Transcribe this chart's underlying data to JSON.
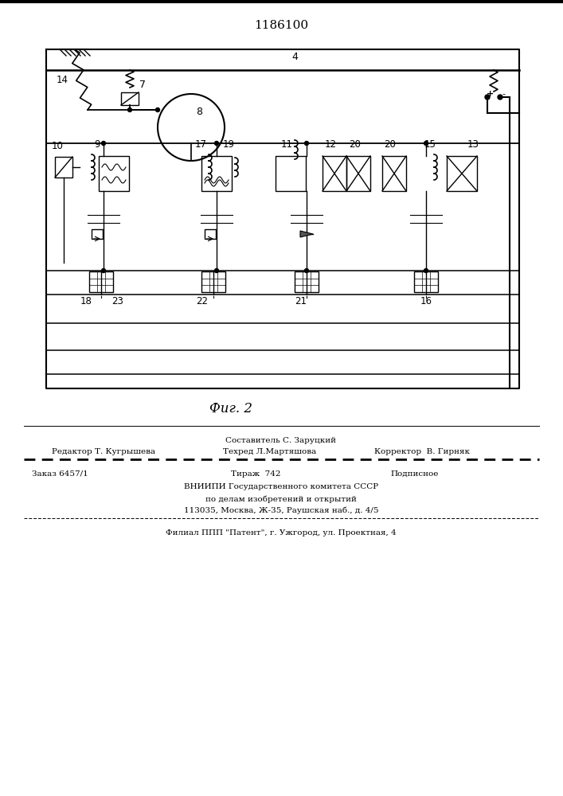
{
  "patent_number": "1186100",
  "fig_label": "Фиг. 2",
  "bg_color": "#ffffff",
  "footer_line1_center_top": "Составитель С. Заруцкий",
  "footer_line1_left": "Редактор Т. Кугрышева",
  "footer_line1_center": "Техред Л.Мартяшова",
  "footer_line1_right": "Корректор  В. Гирняк",
  "footer_line2_left": "Заказ 6457/1",
  "footer_line2_center": "Тираж  742",
  "footer_line2_right": "Подписное",
  "footer_line3": "ВНИИПИ Государственного комитета СССР",
  "footer_line4": "по делам изобретений и открытий",
  "footer_line5": "113035, Москва, Ж-35, Раушская наб., д. 4/5",
  "footer_line6": "Филиал ППП \"Патент\", г. Ужгород, ул. Проектная, 4"
}
